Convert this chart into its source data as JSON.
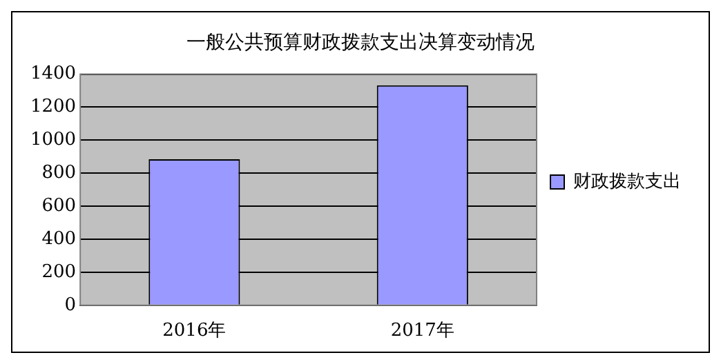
{
  "chart_data": {
    "type": "bar",
    "title": "一般公共预算财政拨款支出决算变动情况",
    "categories": [
      "2016年",
      "2017年"
    ],
    "series": [
      {
        "name": "财政拨款支出",
        "color": "#9999ff",
        "values": [
          885,
          1333
        ]
      }
    ],
    "ylim": [
      0,
      1400
    ],
    "yticks": [
      0,
      200,
      400,
      600,
      800,
      1000,
      1200,
      1400
    ],
    "grid": "y",
    "legend": "right"
  }
}
